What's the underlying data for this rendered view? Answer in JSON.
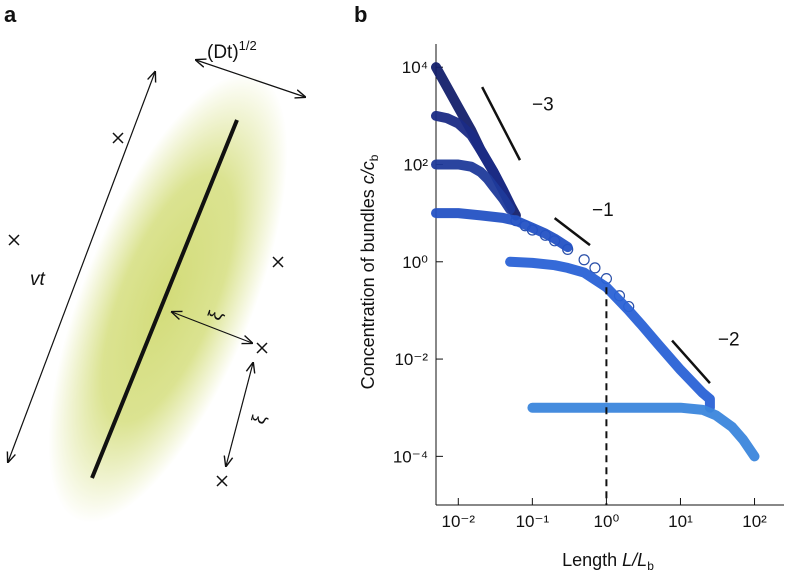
{
  "panel_a": {
    "label": "a",
    "diffusion": "(Dt)",
    "diffusion_exponent": "1/2",
    "length": "vt",
    "xi_near": "ξ",
    "xi_far": "ξ"
  },
  "chart_data": {
    "type": "scatter",
    "panel_label": "b",
    "x_label": "Length",
    "x_label_var": "L/L",
    "x_label_sub": "b",
    "y_label": "Concentration of bundles",
    "y_label_var": "c/c",
    "y_label_sub": "b",
    "log_x": true,
    "log_y": true,
    "xlim": [
      0.005,
      250
    ],
    "ylim": [
      1e-05,
      30000
    ],
    "xticks": [
      {
        "value": 0.01,
        "label": "10⁻²"
      },
      {
        "value": 0.1,
        "label": "10⁻¹"
      },
      {
        "value": 1,
        "label": "10⁰"
      },
      {
        "value": 10,
        "label": "10¹"
      },
      {
        "value": 100,
        "label": "10²"
      }
    ],
    "yticks": [
      {
        "value": 0.0001,
        "label": "10⁻⁴"
      },
      {
        "value": 0.01,
        "label": "10⁻²"
      },
      {
        "value": 1,
        "label": "10⁰"
      },
      {
        "value": 100,
        "label": "10²"
      },
      {
        "value": 10000,
        "label": "10⁴"
      }
    ],
    "series": [
      {
        "color": "#14206b",
        "marker": "filled",
        "x": [
          0.005,
          0.007,
          0.01,
          0.015,
          0.02,
          0.03,
          0.04,
          0.05,
          0.06
        ],
        "values": [
          10000,
          4000,
          1500,
          500,
          200,
          70,
          30,
          15,
          9
        ]
      },
      {
        "color": "#1b2b85",
        "marker": "filled",
        "x": [
          0.005,
          0.007,
          0.01,
          0.015,
          0.02,
          0.03,
          0.04,
          0.05
        ],
        "values": [
          1000,
          900,
          700,
          400,
          200,
          70,
          30,
          15
        ]
      },
      {
        "color": "#1f3a9a",
        "marker": "filled",
        "x": [
          0.005,
          0.01,
          0.015,
          0.02,
          0.025,
          0.03,
          0.04,
          0.05
        ],
        "values": [
          100,
          100,
          90,
          70,
          50,
          35,
          20,
          12
        ]
      },
      {
        "color": "#2a4fa8",
        "marker": "open",
        "x": [
          0.06,
          0.08,
          0.1,
          0.15,
          0.2,
          0.3,
          0.5,
          0.7,
          1,
          1.5,
          2
        ],
        "values": [
          7,
          5.5,
          4.5,
          3.5,
          2.7,
          1.8,
          1.1,
          0.75,
          0.45,
          0.2,
          0.12
        ]
      },
      {
        "color": "#2452c4",
        "marker": "filled",
        "x": [
          0.005,
          0.01,
          0.02,
          0.04,
          0.06,
          0.1,
          0.15,
          0.2,
          0.3
        ],
        "values": [
          10,
          10,
          9,
          8,
          7,
          5,
          3.8,
          3,
          2
        ]
      },
      {
        "color": "#2a62d6",
        "marker": "filled",
        "x": [
          0.05,
          0.1,
          0.2,
          0.3,
          0.5,
          1,
          2,
          3,
          5,
          10,
          20,
          25,
          25
        ],
        "values": [
          1,
          0.95,
          0.85,
          0.75,
          0.6,
          0.3,
          0.1,
          0.05,
          0.02,
          0.006,
          0.002,
          0.0015,
          0.001
        ]
      },
      {
        "color": "#3b86dc",
        "marker": "filled",
        "x": [
          0.1,
          0.2,
          0.5,
          1,
          2,
          5,
          10,
          20,
          30,
          50,
          70,
          100
        ],
        "values": [
          0.001,
          0.001,
          0.001,
          0.001,
          0.001,
          0.001,
          0.001,
          0.0009,
          0.0007,
          0.0004,
          0.00022,
          0.0001
        ]
      }
    ],
    "reference_line": {
      "x": 1,
      "y": 0.3
    },
    "annotations": [
      {
        "text": "−3",
        "x": 0.099,
        "y": 1300,
        "segment": [
          [
            0.021,
            3900
          ],
          [
            0.068,
            123
          ]
        ]
      },
      {
        "text": "−1",
        "x": 0.64,
        "y": 8.7,
        "segment": [
          [
            0.2,
            7.9
          ],
          [
            0.6,
            2.2
          ]
        ]
      },
      {
        "text": "−2",
        "x": 32,
        "y": 0.019,
        "segment": [
          [
            7.7,
            0.024
          ],
          [
            25,
            0.0032
          ]
        ]
      }
    ]
  }
}
